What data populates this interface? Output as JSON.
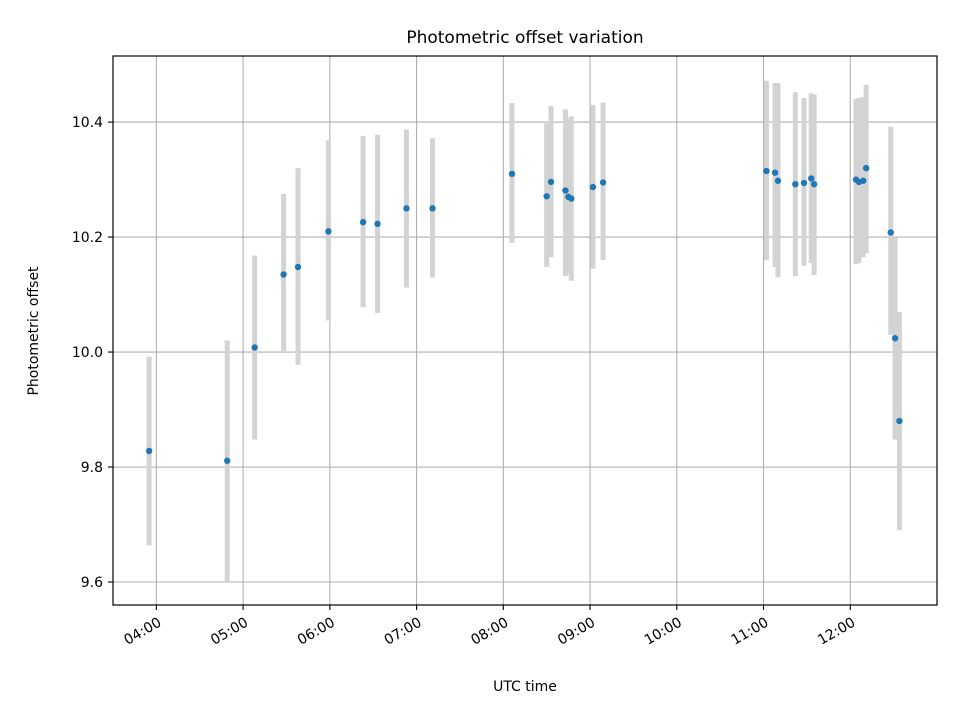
{
  "chart_data": {
    "type": "scatter",
    "title": "Photometric offset variation",
    "xlabel": "UTC time",
    "ylabel": "Photometric offset",
    "xlim": [
      "03:30",
      "13:00"
    ],
    "ylim": [
      9.56,
      10.515
    ],
    "x_ticks": [
      "04:00",
      "05:00",
      "06:00",
      "07:00",
      "08:00",
      "09:00",
      "10:00",
      "11:00",
      "12:00"
    ],
    "y_ticks": [
      "9.6",
      "9.8",
      "10.0",
      "10.2",
      "10.4"
    ],
    "grid": true,
    "colors": {
      "point": "#1f77b4",
      "errorbar": "#d3d3d3",
      "grid": "#b0b0b0"
    },
    "points": [
      {
        "x": "03:55",
        "y": 9.828,
        "ylo": 9.664,
        "yhi": 9.992
      },
      {
        "x": "04:49",
        "y": 9.811,
        "ylo": 9.6,
        "yhi": 10.02
      },
      {
        "x": "05:08",
        "y": 10.008,
        "ylo": 9.848,
        "yhi": 10.168
      },
      {
        "x": "05:28",
        "y": 10.135,
        "ylo": 10.0,
        "yhi": 10.275
      },
      {
        "x": "05:38",
        "y": 10.148,
        "ylo": 9.978,
        "yhi": 10.32
      },
      {
        "x": "05:59",
        "y": 10.21,
        "ylo": 10.055,
        "yhi": 10.368
      },
      {
        "x": "06:23",
        "y": 10.226,
        "ylo": 10.078,
        "yhi": 10.376
      },
      {
        "x": "06:33",
        "y": 10.223,
        "ylo": 10.068,
        "yhi": 10.378
      },
      {
        "x": "06:53",
        "y": 10.25,
        "ylo": 10.112,
        "yhi": 10.387
      },
      {
        "x": "07:11",
        "y": 10.25,
        "ylo": 10.13,
        "yhi": 10.372
      },
      {
        "x": "08:06",
        "y": 10.31,
        "ylo": 10.19,
        "yhi": 10.433
      },
      {
        "x": "08:30",
        "y": 10.271,
        "ylo": 10.148,
        "yhi": 10.398
      },
      {
        "x": "08:33",
        "y": 10.296,
        "ylo": 10.165,
        "yhi": 10.428
      },
      {
        "x": "08:43",
        "y": 10.281,
        "ylo": 10.132,
        "yhi": 10.422
      },
      {
        "x": "08:45",
        "y": 10.27,
        "ylo": 10.136,
        "yhi": 10.405
      },
      {
        "x": "08:47",
        "y": 10.267,
        "ylo": 10.124,
        "yhi": 10.41
      },
      {
        "x": "09:02",
        "y": 10.287,
        "ylo": 10.145,
        "yhi": 10.43
      },
      {
        "x": "09:09",
        "y": 10.295,
        "ylo": 10.16,
        "yhi": 10.434
      },
      {
        "x": "11:02",
        "y": 10.315,
        "ylo": 10.16,
        "yhi": 10.472
      },
      {
        "x": "11:08",
        "y": 10.312,
        "ylo": 10.148,
        "yhi": 10.468
      },
      {
        "x": "11:10",
        "y": 10.298,
        "ylo": 10.13,
        "yhi": 10.468
      },
      {
        "x": "11:22",
        "y": 10.292,
        "ylo": 10.132,
        "yhi": 10.452
      },
      {
        "x": "11:28",
        "y": 10.294,
        "ylo": 10.15,
        "yhi": 10.442
      },
      {
        "x": "11:33",
        "y": 10.302,
        "ylo": 10.155,
        "yhi": 10.45
      },
      {
        "x": "11:35",
        "y": 10.292,
        "ylo": 10.134,
        "yhi": 10.448
      },
      {
        "x": "12:04",
        "y": 10.3,
        "ylo": 10.153,
        "yhi": 10.44
      },
      {
        "x": "12:06",
        "y": 10.296,
        "ylo": 10.155,
        "yhi": 10.442
      },
      {
        "x": "12:09",
        "y": 10.298,
        "ylo": 10.165,
        "yhi": 10.444
      },
      {
        "x": "12:11",
        "y": 10.32,
        "ylo": 10.172,
        "yhi": 10.465
      },
      {
        "x": "12:28",
        "y": 10.208,
        "ylo": 10.03,
        "yhi": 10.392
      },
      {
        "x": "12:31",
        "y": 10.024,
        "ylo": 9.848,
        "yhi": 10.2
      },
      {
        "x": "12:34",
        "y": 9.88,
        "ylo": 9.69,
        "yhi": 10.07
      }
    ]
  }
}
